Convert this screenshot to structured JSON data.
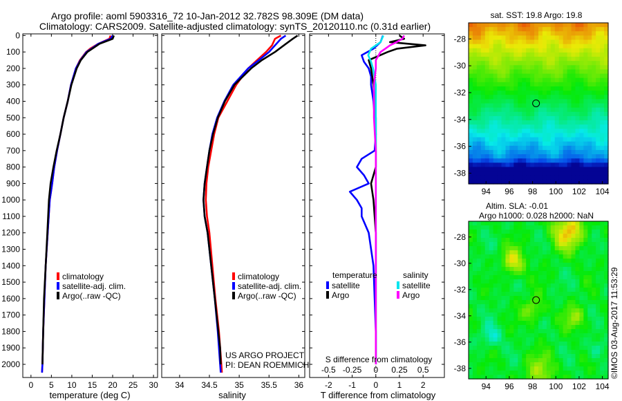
{
  "header": {
    "line1": "Argo profile: aoml 5903316_72 10-Jan-2012 32.782S 98.309E (DM data)",
    "line2": "Climatology: CARS2009. Satellite-adjusted climatology: synTS_20120110.nc (0.31d earlier)"
  },
  "colors": {
    "climatology": "#ff0000",
    "satellite": "#0000ff",
    "argo": "#000000",
    "satellite_sal": "#00e5ee",
    "argo_sal": "#ff00ff"
  },
  "chart_data": [
    {
      "type": "line",
      "name": "temperature-profile",
      "xlabel": "temperature (deg C)",
      "xlim": [
        -2,
        31
      ],
      "xticks": [
        "0",
        "5",
        "10",
        "15",
        "20",
        "25",
        "30"
      ],
      "xtick_values": [
        0,
        5,
        10,
        15,
        20,
        25,
        30
      ],
      "ylim": [
        2080,
        -10
      ],
      "yticks": [
        0,
        100,
        200,
        300,
        400,
        500,
        600,
        700,
        800,
        900,
        1000,
        1100,
        1200,
        1300,
        1400,
        1500,
        1600,
        1700,
        1800,
        1900,
        2000
      ],
      "ytick_labels": [
        "0",
        "100",
        "200",
        "300",
        "400",
        "500",
        "600",
        "700",
        "800",
        "900",
        "1000",
        "1100",
        "1200",
        "1300",
        "1400",
        "1500",
        "1600",
        "1700",
        "1800",
        "1900",
        "2000"
      ],
      "legend": [
        "climatology",
        "satellite-adj. clim.",
        "Argo(..raw -QC)"
      ],
      "series": [
        {
          "name": "climatology",
          "color": "#ff0000",
          "y": [
            0,
            20,
            50,
            80,
            100,
            150,
            200,
            300,
            400,
            500,
            600,
            700,
            800,
            900,
            950,
            1000,
            1200,
            1400,
            1600,
            1800,
            2000,
            2050
          ],
          "x": [
            19.5,
            19.2,
            16.5,
            14.5,
            13.5,
            12,
            11,
            9.8,
            9,
            8,
            7.2,
            6.4,
            5.7,
            5.2,
            4.9,
            4.6,
            4.1,
            3.6,
            3.3,
            3.0,
            2.8,
            2.7
          ]
        },
        {
          "name": "satellite-adj. clim.",
          "color": "#0000ff",
          "y": [
            0,
            20,
            50,
            80,
            100,
            150,
            200,
            300,
            400,
            500,
            600,
            700,
            800,
            900,
            950,
            1000,
            1200,
            1400,
            1600,
            1800,
            2000,
            2050
          ],
          "x": [
            20,
            19.5,
            16.5,
            14.8,
            13.6,
            12.1,
            11,
            9.8,
            9,
            8,
            7.2,
            6.4,
            5.7,
            5.2,
            4.9,
            4.6,
            4.1,
            3.6,
            3.3,
            3.0,
            2.8,
            2.7
          ]
        },
        {
          "name": "Argo(..raw -QC)",
          "color": "#000000",
          "y": [
            0,
            20,
            50,
            80,
            100,
            150,
            200,
            300,
            400,
            500,
            600,
            700,
            800,
            900,
            950,
            1000,
            1200,
            1400,
            1600,
            1800,
            2000
          ],
          "x": [
            20.3,
            20,
            16.8,
            15,
            13.8,
            12.2,
            11.2,
            9.9,
            9,
            8,
            7.2,
            6.3,
            5.5,
            4.8,
            4.6,
            4.4,
            4,
            3.6,
            3.2,
            3.0,
            2.8
          ]
        }
      ]
    },
    {
      "type": "line",
      "name": "salinity-profile",
      "xlabel": "salinity",
      "xlim": [
        33.7,
        36.1
      ],
      "xticks": [
        "34",
        "34.5",
        "35",
        "35.5",
        "36"
      ],
      "xtick_values": [
        34,
        34.5,
        35,
        35.5,
        36
      ],
      "ylim": [
        2080,
        -10
      ],
      "legend": [
        "climatology",
        "satellite-adj. clim.",
        "Argo(..raw -QC)"
      ],
      "annotations": [
        "US ARGO PROJECT",
        "PI: DEAN ROEMMICH"
      ],
      "series": [
        {
          "name": "climatology",
          "color": "#ff0000",
          "y": [
            0,
            20,
            60,
            100,
            150,
            200,
            300,
            400,
            500,
            600,
            700,
            800,
            900,
            1000,
            1100,
            1200,
            1400,
            1600,
            1800,
            2000,
            2050
          ],
          "x": [
            35.7,
            35.6,
            35.55,
            35.45,
            35.3,
            35.15,
            34.95,
            34.8,
            34.65,
            34.58,
            34.53,
            34.48,
            34.45,
            34.44,
            34.46,
            34.5,
            34.55,
            34.6,
            34.66,
            34.7,
            34.71
          ]
        },
        {
          "name": "satellite-adj. clim.",
          "color": "#0000ff",
          "y": [
            0,
            20,
            60,
            100,
            150,
            200,
            300,
            400,
            500,
            600,
            700,
            800,
            900,
            1000,
            1100,
            1200,
            1400,
            1600,
            1800,
            2000,
            2050
          ],
          "x": [
            35.78,
            35.7,
            35.6,
            35.5,
            35.33,
            35.15,
            34.9,
            34.75,
            34.63,
            34.55,
            34.5,
            34.46,
            34.42,
            34.4,
            34.42,
            34.47,
            34.53,
            34.59,
            34.64,
            34.68,
            34.69
          ]
        },
        {
          "name": "Argo(..raw -QC)",
          "color": "#000000",
          "y": [
            0,
            20,
            60,
            100,
            150,
            200,
            300,
            400,
            500,
            600,
            700,
            800,
            900,
            1000,
            1100,
            1200,
            1400,
            1600,
            1800,
            1900,
            2000
          ],
          "x": [
            35.98,
            35.9,
            35.75,
            35.6,
            35.38,
            35.2,
            34.92,
            34.76,
            34.64,
            34.56,
            34.5,
            34.46,
            34.42,
            34.4,
            34.42,
            34.47,
            34.53,
            34.59,
            34.65,
            34.68,
            34.69
          ]
        }
      ]
    },
    {
      "type": "line",
      "name": "difference-profile",
      "xlabel": "T difference from climatology",
      "xlabel_top": "S difference from climatology",
      "xlim": [
        -2.8,
        2.9
      ],
      "xticks": [
        "-2",
        "-1",
        "0",
        "1",
        "2"
      ],
      "xtick_values": [
        -2,
        -1,
        0,
        1,
        2
      ],
      "top_ticks": [
        "-0.5",
        "-0.25",
        "0",
        "0.25",
        "0.5"
      ],
      "top_tick_values": [
        -0.5,
        -0.25,
        0,
        0.25,
        0.5
      ],
      "ylim": [
        2080,
        -10
      ],
      "legend_titles": [
        "temperature",
        "salinity"
      ],
      "legend": [
        "satellite",
        "Argo",
        "satellite",
        "Argo"
      ],
      "series": [
        {
          "name": "temperature satellite",
          "color": "#0000ff",
          "y": [
            0,
            40,
            80,
            120,
            160,
            200,
            250,
            300,
            400,
            500,
            600,
            700,
            750,
            800,
            850,
            900,
            950,
            1000,
            1050,
            1100,
            1200,
            1400,
            1600,
            1800,
            2000
          ],
          "x": [
            0.3,
            0.2,
            -0.1,
            -0.6,
            -0.5,
            -0.3,
            -0.2,
            -0.2,
            -0.1,
            -0.05,
            0,
            -0.05,
            -0.6,
            -0.8,
            -0.5,
            -0.3,
            -1.1,
            -0.8,
            -0.6,
            -0.6,
            -0.3,
            -0.1,
            -0.05,
            0,
            0
          ]
        },
        {
          "name": "temperature Argo",
          "color": "#000000",
          "y": [
            0,
            20,
            40,
            60,
            80,
            100,
            150,
            200,
            300,
            400,
            500,
            600,
            700,
            800,
            900,
            1000,
            1200,
            1400,
            1600,
            1800,
            2000
          ],
          "x": [
            1.0,
            1.2,
            0.6,
            2.1,
            0.9,
            0.5,
            -0.3,
            -0.2,
            -0.1,
            -0.05,
            0,
            0,
            0,
            0,
            -0.2,
            -0.1,
            0,
            0,
            0,
            0,
            0
          ]
        },
        {
          "name": "salinity satellite",
          "color": "#00e5ee",
          "y": [
            0,
            40,
            80,
            120,
            160,
            200,
            300,
            400,
            500,
            600,
            700,
            800,
            900,
            1000,
            1100,
            1200,
            1400,
            1600,
            1800,
            2000
          ],
          "x": [
            0.08,
            0.05,
            -0.05,
            -0.08,
            -0.05,
            -0.03,
            0,
            0,
            0,
            0,
            0,
            0,
            0,
            0,
            0,
            0,
            0,
            0,
            0,
            0
          ]
        },
        {
          "name": "salinity Argo",
          "color": "#ff00ff",
          "y": [
            0,
            20,
            40,
            60,
            80,
            100,
            150,
            200,
            300,
            400,
            500,
            600,
            700,
            800,
            900,
            1000,
            1200,
            1400,
            1600,
            1800,
            2000
          ],
          "x": [
            0.3,
            0.28,
            0.22,
            0.15,
            0.1,
            0.05,
            0,
            0,
            -0.02,
            -0.02,
            -0.02,
            -0.01,
            0,
            0,
            0,
            0,
            0,
            0,
            0,
            0,
            0
          ]
        }
      ]
    },
    {
      "type": "heatmap",
      "name": "sst-map",
      "title": "sat. SST: 19.8 Argo: 19.8",
      "xlim": [
        92.5,
        104.5
      ],
      "ylim": [
        -38.8,
        -26.8
      ],
      "xticks": [
        "94",
        "96",
        "98",
        "100",
        "102",
        "104"
      ],
      "xtick_values": [
        94,
        96,
        98,
        100,
        102,
        104
      ],
      "yticks": [
        "-28",
        "-30",
        "-32",
        "-34",
        "-36",
        "-38"
      ],
      "ytick_values": [
        -28,
        -30,
        -32,
        -34,
        -36,
        -38
      ],
      "marker": [
        98.3,
        -32.8
      ]
    },
    {
      "type": "heatmap",
      "name": "sla-map",
      "title": "Altim. SLA: -0.01",
      "subtitle": "Argo h1000: 0.028 h2000: NaN",
      "xlim": [
        92.5,
        104.5
      ],
      "ylim": [
        -38.8,
        -26.8
      ],
      "xticks": [
        "94",
        "96",
        "98",
        "100",
        "102",
        "104"
      ],
      "xtick_values": [
        94,
        96,
        98,
        100,
        102,
        104
      ],
      "yticks": [
        "-28",
        "-30",
        "-32",
        "-34",
        "-36",
        "-38"
      ],
      "ytick_values": [
        -28,
        -30,
        -32,
        -34,
        -36,
        -38
      ],
      "marker": [
        98.3,
        -32.8
      ]
    }
  ],
  "credit": "©IMOS 03-Aug-2017 11:53:29"
}
